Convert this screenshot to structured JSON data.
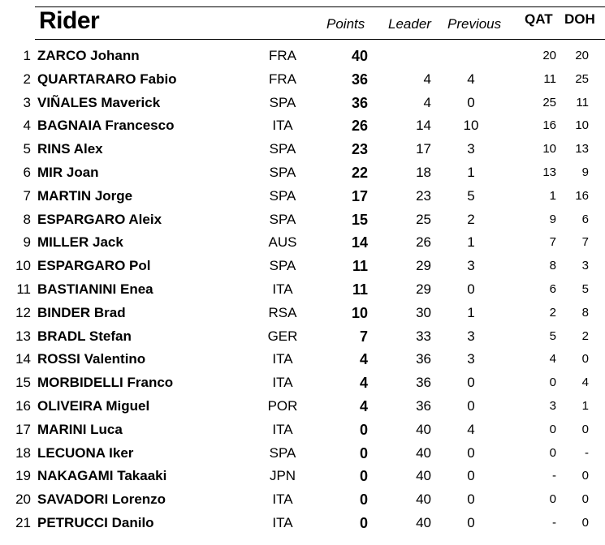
{
  "headers": {
    "rider": "Rider",
    "points": "Points",
    "leader": "Leader",
    "previous": "Previous",
    "qat": "QAT",
    "doh": "DOH"
  },
  "rows": [
    {
      "pos": "1",
      "name": "ZARCO Johann",
      "nat": "FRA",
      "points": "40",
      "leader": "",
      "previous": "",
      "qat": "20",
      "doh": "20"
    },
    {
      "pos": "2",
      "name": "QUARTARARO Fabio",
      "nat": "FRA",
      "points": "36",
      "leader": "4",
      "previous": "4",
      "qat": "11",
      "doh": "25"
    },
    {
      "pos": "3",
      "name": "VIÑALES Maverick",
      "nat": "SPA",
      "points": "36",
      "leader": "4",
      "previous": "0",
      "qat": "25",
      "doh": "11"
    },
    {
      "pos": "4",
      "name": "BAGNAIA Francesco",
      "nat": "ITA",
      "points": "26",
      "leader": "14",
      "previous": "10",
      "qat": "16",
      "doh": "10"
    },
    {
      "pos": "5",
      "name": "RINS Alex",
      "nat": "SPA",
      "points": "23",
      "leader": "17",
      "previous": "3",
      "qat": "10",
      "doh": "13"
    },
    {
      "pos": "6",
      "name": "MIR Joan",
      "nat": "SPA",
      "points": "22",
      "leader": "18",
      "previous": "1",
      "qat": "13",
      "doh": "9"
    },
    {
      "pos": "7",
      "name": "MARTIN Jorge",
      "nat": "SPA",
      "points": "17",
      "leader": "23",
      "previous": "5",
      "qat": "1",
      "doh": "16"
    },
    {
      "pos": "8",
      "name": "ESPARGARO Aleix",
      "nat": "SPA",
      "points": "15",
      "leader": "25",
      "previous": "2",
      "qat": "9",
      "doh": "6"
    },
    {
      "pos": "9",
      "name": "MILLER Jack",
      "nat": "AUS",
      "points": "14",
      "leader": "26",
      "previous": "1",
      "qat": "7",
      "doh": "7"
    },
    {
      "pos": "10",
      "name": "ESPARGARO Pol",
      "nat": "SPA",
      "points": "11",
      "leader": "29",
      "previous": "3",
      "qat": "8",
      "doh": "3"
    },
    {
      "pos": "11",
      "name": "BASTIANINI Enea",
      "nat": "ITA",
      "points": "11",
      "leader": "29",
      "previous": "0",
      "qat": "6",
      "doh": "5"
    },
    {
      "pos": "12",
      "name": "BINDER Brad",
      "nat": "RSA",
      "points": "10",
      "leader": "30",
      "previous": "1",
      "qat": "2",
      "doh": "8"
    },
    {
      "pos": "13",
      "name": "BRADL Stefan",
      "nat": "GER",
      "points": "7",
      "leader": "33",
      "previous": "3",
      "qat": "5",
      "doh": "2"
    },
    {
      "pos": "14",
      "name": "ROSSI Valentino",
      "nat": "ITA",
      "points": "4",
      "leader": "36",
      "previous": "3",
      "qat": "4",
      "doh": "0"
    },
    {
      "pos": "15",
      "name": "MORBIDELLI Franco",
      "nat": "ITA",
      "points": "4",
      "leader": "36",
      "previous": "0",
      "qat": "0",
      "doh": "4"
    },
    {
      "pos": "16",
      "name": "OLIVEIRA Miguel",
      "nat": "POR",
      "points": "4",
      "leader": "36",
      "previous": "0",
      "qat": "3",
      "doh": "1"
    },
    {
      "pos": "17",
      "name": "MARINI Luca",
      "nat": "ITA",
      "points": "0",
      "leader": "40",
      "previous": "4",
      "qat": "0",
      "doh": "0"
    },
    {
      "pos": "18",
      "name": "LECUONA Iker",
      "nat": "SPA",
      "points": "0",
      "leader": "40",
      "previous": "0",
      "qat": "0",
      "doh": "-"
    },
    {
      "pos": "19",
      "name": "NAKAGAMI Takaaki",
      "nat": "JPN",
      "points": "0",
      "leader": "40",
      "previous": "0",
      "qat": "-",
      "doh": "0"
    },
    {
      "pos": "20",
      "name": "SAVADORI Lorenzo",
      "nat": "ITA",
      "points": "0",
      "leader": "40",
      "previous": "0",
      "qat": "0",
      "doh": "0"
    },
    {
      "pos": "21",
      "name": "PETRUCCI Danilo",
      "nat": "ITA",
      "points": "0",
      "leader": "40",
      "previous": "0",
      "qat": "-",
      "doh": "0"
    }
  ]
}
